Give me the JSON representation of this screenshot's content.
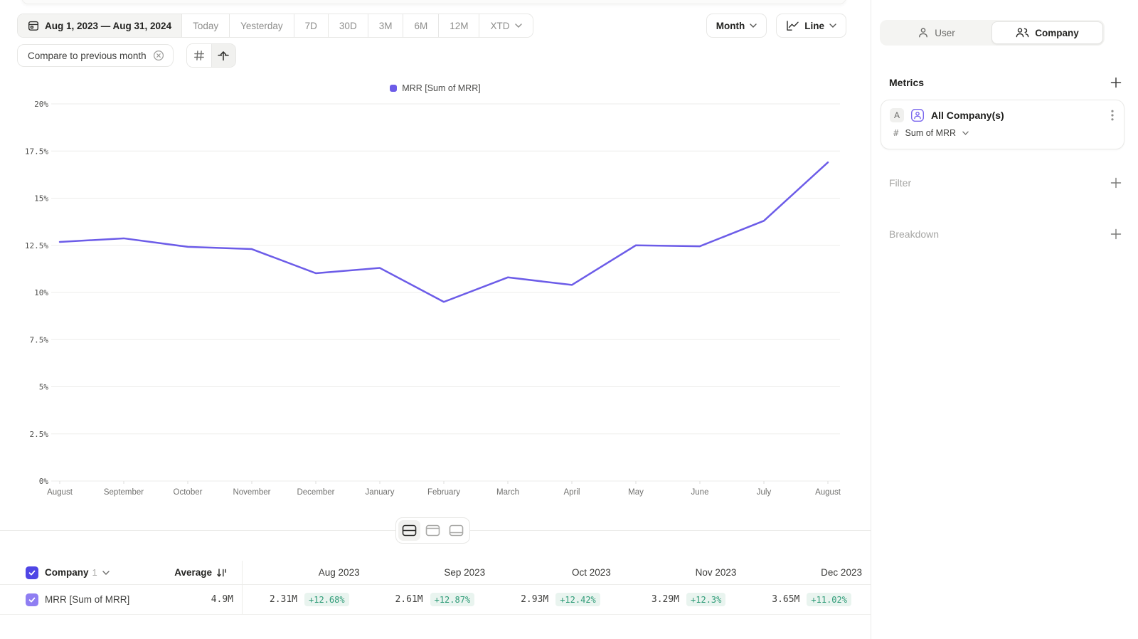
{
  "toolbar": {
    "date_range": "Aug 1, 2023 — Aug 31, 2024",
    "presets": [
      "Today",
      "Yesterday",
      "7D",
      "30D",
      "3M",
      "6M",
      "12M"
    ],
    "xtd_label": "XTD",
    "granularity": "Month",
    "chart_type": "Line",
    "compare_label": "Compare to previous month"
  },
  "legend": {
    "series_label": "MRR [Sum of MRR]"
  },
  "chart_data": {
    "type": "line",
    "title": "MRR [Sum of MRR]",
    "x": [
      "August",
      "September",
      "October",
      "November",
      "December",
      "January",
      "February",
      "March",
      "April",
      "May",
      "June",
      "July",
      "August"
    ],
    "values": [
      12.68,
      12.87,
      12.42,
      12.3,
      11.02,
      11.3,
      9.5,
      10.8,
      10.4,
      12.5,
      12.45,
      13.8,
      16.9
    ],
    "unit": "%",
    "ylabel": "",
    "xlabel": "",
    "ylim": [
      0,
      20
    ],
    "ytick_step": 2.5,
    "grid": true,
    "legend_position": "top-center",
    "line_color": "#6C5CE8",
    "grid_color": "#EDEDEB"
  },
  "table": {
    "entity_label": "Company",
    "entity_count": "1",
    "average_label": "Average",
    "columns": [
      "Aug 2023",
      "Sep 2023",
      "Oct 2023",
      "Nov 2023",
      "Dec 2023"
    ],
    "rows": [
      {
        "label": "MRR [Sum of MRR]",
        "average": "4.9M",
        "cells": [
          {
            "value": "2.31M",
            "delta": "+12.68%"
          },
          {
            "value": "2.61M",
            "delta": "+12.87%"
          },
          {
            "value": "2.93M",
            "delta": "+12.42%"
          },
          {
            "value": "3.29M",
            "delta": "+12.3%"
          },
          {
            "value": "3.65M",
            "delta": "+11.02%"
          }
        ]
      }
    ]
  },
  "sidebar": {
    "toggle": {
      "user_label": "User",
      "company_label": "Company",
      "selected": "Company"
    },
    "metrics": {
      "heading": "Metrics",
      "badge": "A",
      "metric_name": "All Company(s)",
      "aggregation_prefix": "#",
      "aggregation": "Sum of MRR"
    },
    "filter_label": "Filter",
    "breakdown_label": "Breakdown"
  },
  "colors": {
    "accent_purple": "#6C5CE8",
    "checkbox_indigo": "#4F46E5",
    "checkbox_purple": "#8F7EF2",
    "delta_green": "#2E9B77",
    "delta_green_bg": "#E9F4EF"
  }
}
